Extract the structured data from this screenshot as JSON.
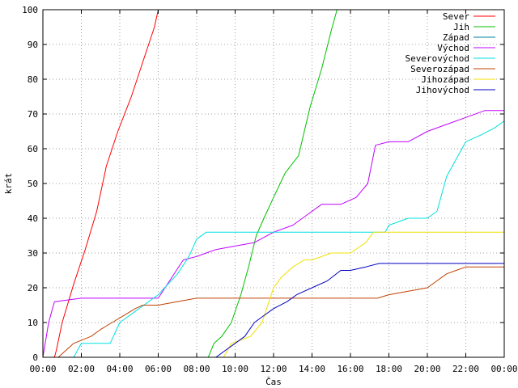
{
  "chart_data": {
    "type": "line",
    "title": "",
    "xlabel": "Čas",
    "ylabel": "krát",
    "xlim": [
      0,
      24
    ],
    "ylim": [
      0,
      100
    ],
    "grid": true,
    "legend_position": "top-right",
    "x_tick_labels": [
      "00:00",
      "02:00",
      "04:00",
      "06:00",
      "08:00",
      "10:00",
      "12:00",
      "14:00",
      "16:00",
      "18:00",
      "20:00",
      "22:00",
      "00:00"
    ],
    "y_tick_labels": [
      "0",
      "10",
      "20",
      "30",
      "40",
      "50",
      "60",
      "70",
      "80",
      "90",
      "100"
    ],
    "series": [
      {
        "name": "Sever",
        "color": "#ff0000",
        "x": [
          0.6,
          0.7,
          1.0,
          1.6,
          2.2,
          2.8,
          3.3,
          3.9,
          4.6,
          5.2,
          5.8,
          6.0
        ],
        "y": [
          0,
          2,
          10,
          21,
          31,
          42,
          55,
          65,
          75,
          85,
          95,
          100
        ]
      },
      {
        "name": "Jih",
        "color": "#00c000",
        "x": [
          8.6,
          8.9,
          9.3,
          9.8,
          10.3,
          10.7,
          11.1,
          11.5,
          12.0,
          12.6,
          13.3,
          13.9,
          14.5,
          15.0,
          15.3
        ],
        "y": [
          0,
          4,
          6,
          10,
          18,
          26,
          35,
          40,
          46,
          53,
          58,
          72,
          83,
          94,
          100
        ]
      },
      {
        "name": "Západ",
        "color": "#0080a0",
        "x": [],
        "y": []
      },
      {
        "name": "Východ",
        "color": "#c000ff",
        "x": [
          0,
          0.3,
          0.6,
          2.0,
          3.5,
          5.0,
          6.0,
          7.3,
          8.0,
          9.0,
          10.0,
          11.0,
          12.0,
          13.0,
          13.5,
          14.5,
          15.5,
          16.3,
          16.9,
          17.3,
          18.0,
          19.0,
          20.0,
          21.0,
          22.0,
          23.0,
          24.0
        ],
        "y": [
          0,
          10,
          16,
          17,
          17,
          17,
          17,
          28,
          29,
          31,
          32,
          33,
          36,
          38,
          40,
          44,
          44,
          46,
          50,
          61,
          62,
          62,
          65,
          67,
          69,
          71,
          71
        ]
      },
      {
        "name": "Severovýchod",
        "color": "#00e0e0",
        "x": [
          1.6,
          2.0,
          3.5,
          4.0,
          5.0,
          6.0,
          6.5,
          7.0,
          7.6,
          8.0,
          8.5,
          10.0,
          12.0,
          14.0,
          16.0,
          17.8,
          18.0,
          19.0,
          20.0,
          20.5,
          21.0,
          21.5,
          22.0,
          22.8,
          23.5,
          24.0
        ],
        "y": [
          0,
          4,
          4,
          10,
          14,
          18,
          21,
          24,
          29,
          34,
          36,
          36,
          36,
          36,
          36,
          36,
          38,
          40,
          40,
          42,
          52,
          57,
          62,
          64,
          66,
          68
        ]
      },
      {
        "name": "Severozápad",
        "color": "#c04000",
        "x": [
          0.8,
          1.2,
          1.6,
          2.5,
          3.0,
          3.6,
          4.2,
          4.8,
          5.2,
          6.0,
          8.0,
          10.0,
          12.0,
          14.0,
          16.0,
          17.4,
          18.0,
          19.0,
          20.0,
          20.5,
          21.0,
          21.5,
          22.0,
          23.0,
          24.0
        ],
        "y": [
          0,
          2,
          4,
          6,
          8,
          10,
          12,
          14,
          15,
          15,
          17,
          17,
          17,
          17,
          17,
          17,
          18,
          19,
          20,
          22,
          24,
          25,
          26,
          26,
          26
        ]
      },
      {
        "name": "Jihozápad",
        "color": "#f0e000",
        "x": [
          9.4,
          9.8,
          10.8,
          11.4,
          12.0,
          12.4,
          13.0,
          13.6,
          14.0,
          15.0,
          16.0,
          16.8,
          17.2,
          17.5,
          18.0,
          20.0,
          22.0,
          24.0
        ],
        "y": [
          0,
          4,
          6,
          10,
          20,
          23,
          26,
          28,
          28,
          30,
          30,
          33,
          36,
          36,
          36,
          36,
          36,
          36
        ]
      },
      {
        "name": "Jihovýchod",
        "color": "#0000c0",
        "x": [
          9.0,
          9.5,
          10.0,
          10.5,
          11.0,
          11.5,
          12.0,
          12.7,
          13.2,
          14.0,
          14.8,
          15.5,
          16.0,
          16.8,
          17.5,
          18.0,
          20.0,
          22.0,
          24.0
        ],
        "y": [
          0,
          2,
          4,
          6,
          10,
          12,
          14,
          16,
          18,
          20,
          22,
          25,
          25,
          26,
          27,
          27,
          27,
          27,
          27
        ]
      }
    ]
  }
}
